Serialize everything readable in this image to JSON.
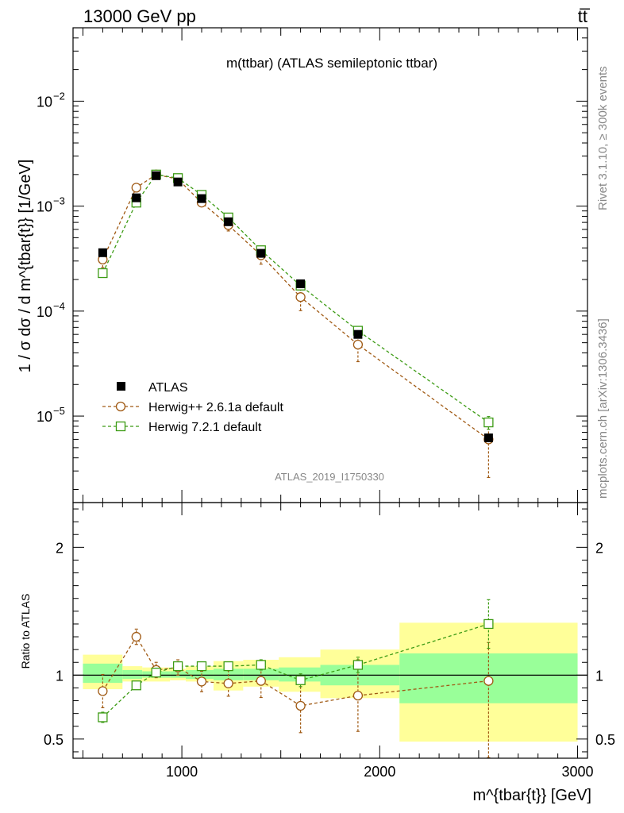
{
  "header": {
    "left": "13000 GeV pp",
    "right": "tt̅"
  },
  "side_text": {
    "rivet": "Rivet 3.1.10, ≥ 300k events",
    "mcplots": "mcplots.cern.ch [arXiv:1306.3436]"
  },
  "chart_data": [
    {
      "type": "line",
      "panel": "main",
      "title": "m(ttbar) (ATLAS semileptonic ttbar)",
      "watermark": "ATLAS_2019_I1750330",
      "ylabel": "1 / σ dσ / d m^{tbar{t}} [1/GeV]",
      "yscale": "log",
      "xlim": [
        450,
        3050
      ],
      "ylim": [
        1.5e-06,
        0.05
      ],
      "y_ticks": [
        {
          "v": 1e-05,
          "base": "10",
          "exp": "−5"
        },
        {
          "v": 0.0001,
          "base": "10",
          "exp": "−4"
        },
        {
          "v": 0.001,
          "base": "10",
          "exp": "−3"
        },
        {
          "v": 0.01,
          "base": "10",
          "exp": "−2"
        }
      ],
      "x": [
        600,
        770,
        870,
        980,
        1100,
        1235,
        1400,
        1600,
        1890,
        2550
      ],
      "series": [
        {
          "name": "ATLAS",
          "color": "#000000",
          "marker": "square-filled",
          "values": [
            0.00036,
            0.0012,
            0.00195,
            0.0017,
            0.00118,
            0.00071,
            0.000355,
            0.000182,
            6e-05,
            6.2e-06
          ],
          "err_low": [
            0,
            0,
            0,
            0,
            0,
            0,
            0,
            0,
            0,
            0
          ],
          "err_high": [
            0,
            0,
            0,
            0,
            0,
            0,
            0,
            0,
            0,
            0
          ]
        },
        {
          "name": "Herwig++ 2.6.1a default",
          "color": "#a05a14",
          "marker": "circle-open",
          "values": [
            0.00031,
            0.0015,
            0.002,
            0.00181,
            0.00108,
            0.00066,
            0.00034,
            0.000136,
            4.8e-05,
            6e-06
          ],
          "err_low": [
            5e-05,
            0.0001,
            0.0001,
            0.0001,
            8e-05,
            8e-05,
            6e-05,
            3.5e-05,
            1.5e-05,
            3.4e-06
          ],
          "err_high": [
            5e-05,
            0.0001,
            0.0001,
            0.0001,
            8e-05,
            8e-05,
            6e-05,
            3.5e-05,
            1.5e-05,
            2e-06
          ]
        },
        {
          "name": "Herwig 7.2.1 default",
          "color": "#3c9b14",
          "marker": "square-open",
          "values": [
            0.00023,
            0.00108,
            0.002,
            0.00185,
            0.00128,
            0.00078,
            0.00038,
            0.000175,
            6.5e-05,
            8.7e-06
          ],
          "err_low": [
            2e-05,
            4e-05,
            5e-05,
            5e-05,
            4e-05,
            3e-05,
            2e-05,
            1e-05,
            3e-06,
            1.2e-06
          ],
          "err_high": [
            2e-05,
            4e-05,
            5e-05,
            5e-05,
            4e-05,
            3e-05,
            2e-05,
            1e-05,
            3e-06,
            1.2e-06
          ]
        }
      ]
    },
    {
      "type": "line",
      "panel": "ratio",
      "ylabel": "Ratio to ATLAS",
      "xlabel": "m^{tbar{t}} [GeV]",
      "xlim": [
        450,
        3050
      ],
      "ylim": [
        0.35,
        2.35
      ],
      "x_ticks": [
        1000,
        2000,
        3000
      ],
      "y_ticks": [
        0.5,
        1,
        2
      ],
      "bands": {
        "bins": [
          [
            500,
            700
          ],
          [
            700,
            800
          ],
          [
            800,
            940
          ],
          [
            940,
            1020
          ],
          [
            1020,
            1160
          ],
          [
            1160,
            1310
          ],
          [
            1310,
            1490
          ],
          [
            1490,
            1700
          ],
          [
            1700,
            2100
          ],
          [
            2100,
            3000
          ]
        ],
        "stat": [
          [
            0.94,
            1.09
          ],
          [
            0.97,
            1.04
          ],
          [
            0.98,
            1.03
          ],
          [
            0.98,
            1.03
          ],
          [
            0.97,
            1.04
          ],
          [
            0.96,
            1.05
          ],
          [
            0.96,
            1.05
          ],
          [
            0.95,
            1.06
          ],
          [
            0.92,
            1.08
          ],
          [
            0.78,
            1.17
          ]
        ],
        "total": [
          [
            0.89,
            1.16
          ],
          [
            0.95,
            1.07
          ],
          [
            0.95,
            1.06
          ],
          [
            0.96,
            1.05
          ],
          [
            0.95,
            1.07
          ],
          [
            0.88,
            1.11
          ],
          [
            0.91,
            1.12
          ],
          [
            0.87,
            1.14
          ],
          [
            0.82,
            1.2
          ],
          [
            0.48,
            1.41
          ]
        ]
      },
      "x": [
        600,
        770,
        870,
        980,
        1100,
        1235,
        1400,
        1600,
        1890,
        2550
      ],
      "series": [
        {
          "name": "Herwig++ 2.6.1a default",
          "color": "#a05a14",
          "marker": "circle-open",
          "values": [
            0.875,
            1.3,
            1.04,
            1.06,
            0.95,
            0.935,
            0.955,
            0.76,
            0.84,
            0.955
          ],
          "err_low": [
            0.13,
            0.06,
            0.06,
            0.06,
            0.08,
            0.1,
            0.13,
            0.21,
            0.28,
            0.6
          ],
          "err_high": [
            0.13,
            0.06,
            0.06,
            0.06,
            0.08,
            0.1,
            0.13,
            0.21,
            0.28,
            0.3
          ]
        },
        {
          "name": "Herwig 7.2.1 default",
          "color": "#3c9b14",
          "marker": "square-open",
          "values": [
            0.67,
            0.92,
            1.02,
            1.07,
            1.07,
            1.07,
            1.08,
            0.96,
            1.08,
            1.4
          ],
          "err_low": [
            0.04,
            0.03,
            0.03,
            0.03,
            0.03,
            0.03,
            0.04,
            0.05,
            0.06,
            0.19
          ],
          "err_high": [
            0.04,
            0.03,
            0.03,
            0.03,
            0.03,
            0.03,
            0.04,
            0.05,
            0.06,
            0.19
          ]
        }
      ]
    }
  ]
}
